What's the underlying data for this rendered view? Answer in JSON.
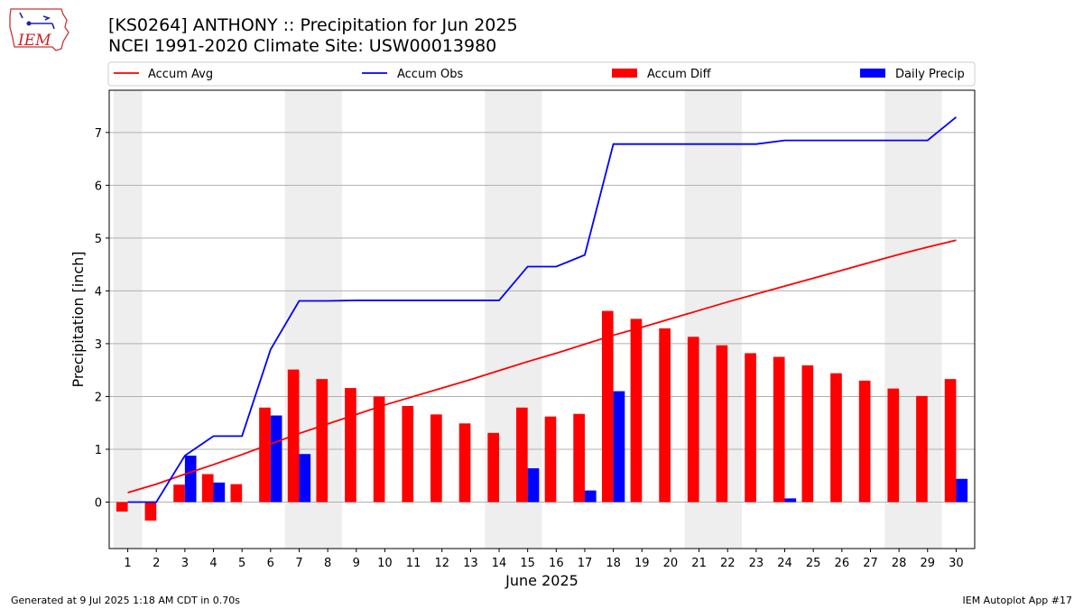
{
  "header": {
    "title_line1": "[KS0264] ANTHONY :: Precipitation for Jun 2025",
    "title_line2": "NCEI 1991-2020 Climate Site: USW00013980",
    "logo_text": "IEM"
  },
  "footer": {
    "left": "Generated at 9 Jul 2025 1:18 AM CDT in 0.70s",
    "right": "IEM Autoplot App #17"
  },
  "colors": {
    "accum_avg": "#ff0000",
    "accum_obs": "#0000ff",
    "accum_diff": "#ff0000",
    "daily_precip": "#0000ff",
    "weekend_shade": "#eeeeee",
    "grid": "#b0b0b0"
  },
  "chart_data": {
    "type": "bar",
    "xlabel": "June 2025",
    "ylabel": "Precipitation [inch]",
    "ylim": [
      -0.88,
      7.8
    ],
    "yticks": [
      0,
      1,
      2,
      3,
      4,
      5,
      6,
      7
    ],
    "grid": "horizontal",
    "legend_position": "top",
    "categories": [
      "1",
      "2",
      "3",
      "4",
      "5",
      "6",
      "7",
      "8",
      "9",
      "10",
      "11",
      "12",
      "13",
      "14",
      "15",
      "16",
      "17",
      "18",
      "19",
      "20",
      "21",
      "22",
      "23",
      "24",
      "25",
      "26",
      "27",
      "28",
      "29",
      "30"
    ],
    "shaded_days": [
      [
        1,
        1
      ],
      [
        7,
        8
      ],
      [
        14,
        15
      ],
      [
        21,
        22
      ],
      [
        28,
        29
      ]
    ],
    "series": [
      {
        "name": "Accum Avg",
        "kind": "line",
        "color": "#ff0000",
        "values": [
          0.18,
          0.34,
          0.53,
          0.71,
          0.9,
          1.1,
          1.3,
          1.48,
          1.66,
          1.84,
          2.0,
          2.16,
          2.32,
          2.49,
          2.66,
          2.82,
          2.99,
          3.16,
          3.31,
          3.47,
          3.63,
          3.79,
          3.94,
          4.09,
          4.24,
          4.39,
          4.54,
          4.69,
          4.83,
          4.96
        ]
      },
      {
        "name": "Accum Obs",
        "kind": "line",
        "color": "#0000ff",
        "values": [
          0.0,
          0.0,
          0.88,
          1.25,
          1.25,
          2.89,
          3.81,
          3.81,
          3.82,
          3.82,
          3.82,
          3.82,
          3.82,
          3.82,
          4.46,
          4.46,
          4.68,
          6.78,
          6.78,
          6.78,
          6.78,
          6.78,
          6.78,
          6.85,
          6.85,
          6.85,
          6.85,
          6.85,
          6.85,
          7.29
        ]
      },
      {
        "name": "Accum Diff",
        "kind": "bar",
        "color": "#ff0000",
        "values": [
          -0.18,
          -0.35,
          0.33,
          0.53,
          0.34,
          1.79,
          2.51,
          2.33,
          2.16,
          2.0,
          1.82,
          1.66,
          1.49,
          1.31,
          1.79,
          1.62,
          1.67,
          3.62,
          3.47,
          3.29,
          3.13,
          2.97,
          2.82,
          2.75,
          2.59,
          2.44,
          2.3,
          2.15,
          2.01,
          2.33
        ]
      },
      {
        "name": "Daily Precip",
        "kind": "bar",
        "color": "#0000ff",
        "values": [
          0.0,
          0.0,
          0.88,
          0.37,
          0.0,
          1.64,
          0.91,
          0.0,
          0.0,
          0.0,
          0.0,
          0.0,
          0.0,
          0.0,
          0.64,
          0.0,
          0.22,
          2.1,
          0.0,
          0.0,
          0.0,
          0.0,
          0.0,
          0.07,
          0.0,
          0.0,
          0.0,
          0.0,
          0.0,
          0.44
        ]
      }
    ]
  }
}
